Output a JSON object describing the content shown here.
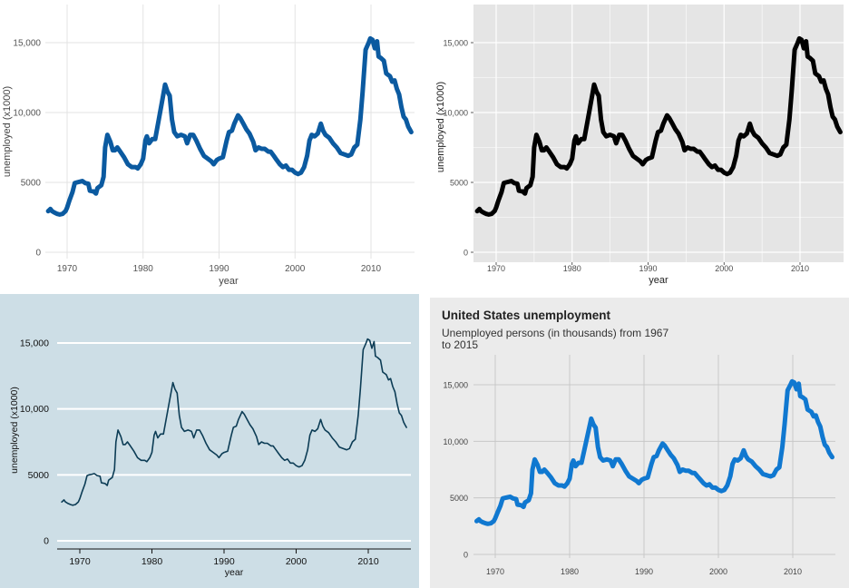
{
  "chart_data": [
    {
      "type": "line",
      "theme": "minimal",
      "xlabel": "year",
      "ylabel": "unemployed (x1000)",
      "xlim": [
        1967.5,
        2015.3
      ],
      "ylim": [
        0,
        15400
      ],
      "xticks": [
        1970,
        1980,
        1990,
        2000,
        2010
      ],
      "xticklabels": [
        "1970",
        "1980",
        "1990",
        "2000",
        "2010"
      ],
      "yticks": [
        0,
        5000,
        10000,
        15000
      ],
      "yticklabels": [
        "0",
        "5000",
        "10,000",
        "15,000"
      ],
      "grid": true,
      "line_color": "#0b5aa0",
      "background": "#ffffff",
      "x": [
        1967.5,
        1967.8,
        1968.0,
        1968.3,
        1968.7,
        1969.0,
        1969.4,
        1969.8,
        1970.0,
        1970.3,
        1970.7,
        1971.0,
        1971.3,
        1971.7,
        1972.0,
        1972.4,
        1972.8,
        1973.0,
        1973.5,
        1973.8,
        1974.0,
        1974.5,
        1974.8,
        1975.0,
        1975.3,
        1975.7,
        1976.0,
        1976.3,
        1976.6,
        1977.0,
        1977.5,
        1978.0,
        1978.5,
        1979.0,
        1979.3,
        1979.7,
        1980.0,
        1980.3,
        1980.5,
        1980.8,
        1981.2,
        1981.6,
        1982.0,
        1982.5,
        1982.9,
        1983.2,
        1983.5,
        1983.8,
        1984.1,
        1984.5,
        1985.0,
        1985.5,
        1985.8,
        1986.2,
        1986.6,
        1987.0,
        1987.5,
        1988.0,
        1988.5,
        1989.0,
        1989.3,
        1989.7,
        1990.0,
        1990.5,
        1991.0,
        1991.3,
        1991.7,
        1992.0,
        1992.5,
        1992.8,
        1993.2,
        1993.6,
        1994.0,
        1994.5,
        1994.8,
        1995.2,
        1995.6,
        1996.0,
        1996.5,
        1996.8,
        1997.2,
        1997.6,
        1998.0,
        1998.4,
        1998.8,
        1999.2,
        1999.6,
        2000.0,
        2000.4,
        2000.8,
        2001.2,
        2001.6,
        2001.9,
        2002.2,
        2002.6,
        2003.0,
        2003.4,
        2003.7,
        2004.0,
        2004.5,
        2005.0,
        2005.5,
        2006.0,
        2006.5,
        2007.0,
        2007.4,
        2007.8,
        2008.2,
        2008.6,
        2008.9,
        2009.3,
        2009.7,
        2009.9,
        2010.2,
        2010.5,
        2010.8,
        2011.0,
        2011.3,
        2011.7,
        2012.0,
        2012.5,
        2012.8,
        2013.1,
        2013.4,
        2013.7,
        2014.0,
        2014.3,
        2014.6,
        2014.9,
        2015.1,
        2015.3
      ],
      "y": [
        2944,
        3100,
        2950,
        2850,
        2750,
        2700,
        2750,
        2950,
        3200,
        3700,
        4300,
        4950,
        5000,
        5050,
        5100,
        4950,
        4900,
        4400,
        4350,
        4200,
        4600,
        4800,
        5400,
        7500,
        8400,
        7900,
        7300,
        7300,
        7500,
        7200,
        6800,
        6300,
        6100,
        6100,
        6000,
        6300,
        6700,
        8000,
        8300,
        7800,
        8100,
        8100,
        9300,
        10800,
        12000,
        11500,
        11200,
        9500,
        8600,
        8300,
        8400,
        8300,
        7800,
        8400,
        8400,
        8000,
        7400,
        6900,
        6700,
        6500,
        6300,
        6600,
        6700,
        6800,
        8000,
        8600,
        8700,
        9200,
        9800,
        9600,
        9200,
        8800,
        8500,
        7900,
        7300,
        7500,
        7400,
        7400,
        7200,
        7200,
        6900,
        6600,
        6300,
        6100,
        6200,
        5900,
        5900,
        5700,
        5600,
        5700,
        6100,
        6900,
        8000,
        8400,
        8300,
        8500,
        9200,
        8700,
        8400,
        8200,
        7800,
        7500,
        7100,
        7000,
        6900,
        7000,
        7500,
        7700,
        9500,
        11500,
        14500,
        15000,
        15300,
        15200,
        14600,
        15100,
        14000,
        13900,
        13700,
        12800,
        12600,
        12200,
        12300,
        11700,
        11300,
        10400,
        9700,
        9500,
        9000,
        8800,
        8600
      ]
    },
    {
      "type": "line",
      "theme": "gray",
      "xlabel": "year",
      "ylabel": "unemployed (x1000)",
      "xlim": [
        1967.5,
        2015.3
      ],
      "ylim": [
        0,
        15400
      ],
      "xticks": [
        1970,
        1980,
        1990,
        2000,
        2010
      ],
      "xticklabels": [
        "1970",
        "1980",
        "1990",
        "2000",
        "2010"
      ],
      "yticks": [
        0,
        5000,
        10000,
        15000
      ],
      "yticklabels": [
        "0",
        "5000",
        "10,000",
        "15,000"
      ],
      "grid": true,
      "line_color": "#000000",
      "background": "#e5e5e5",
      "x": [
        1967.5,
        1967.8,
        1968.0,
        1968.3,
        1968.7,
        1969.0,
        1969.4,
        1969.8,
        1970.0,
        1970.3,
        1970.7,
        1971.0,
        1971.3,
        1971.7,
        1972.0,
        1972.4,
        1972.8,
        1973.0,
        1973.5,
        1973.8,
        1974.0,
        1974.5,
        1974.8,
        1975.0,
        1975.3,
        1975.7,
        1976.0,
        1976.3,
        1976.6,
        1977.0,
        1977.5,
        1978.0,
        1978.5,
        1979.0,
        1979.3,
        1979.7,
        1980.0,
        1980.3,
        1980.5,
        1980.8,
        1981.2,
        1981.6,
        1982.0,
        1982.5,
        1982.9,
        1983.2,
        1983.5,
        1983.8,
        1984.1,
        1984.5,
        1985.0,
        1985.5,
        1985.8,
        1986.2,
        1986.6,
        1987.0,
        1987.5,
        1988.0,
        1988.5,
        1989.0,
        1989.3,
        1989.7,
        1990.0,
        1990.5,
        1991.0,
        1991.3,
        1991.7,
        1992.0,
        1992.5,
        1992.8,
        1993.2,
        1993.6,
        1994.0,
        1994.5,
        1994.8,
        1995.2,
        1995.6,
        1996.0,
        1996.5,
        1996.8,
        1997.2,
        1997.6,
        1998.0,
        1998.4,
        1998.8,
        1999.2,
        1999.6,
        2000.0,
        2000.4,
        2000.8,
        2001.2,
        2001.6,
        2001.9,
        2002.2,
        2002.6,
        2003.0,
        2003.4,
        2003.7,
        2004.0,
        2004.5,
        2005.0,
        2005.5,
        2006.0,
        2006.5,
        2007.0,
        2007.4,
        2007.8,
        2008.2,
        2008.6,
        2008.9,
        2009.3,
        2009.7,
        2009.9,
        2010.2,
        2010.5,
        2010.8,
        2011.0,
        2011.3,
        2011.7,
        2012.0,
        2012.5,
        2012.8,
        2013.1,
        2013.4,
        2013.7,
        2014.0,
        2014.3,
        2014.6,
        2014.9,
        2015.1,
        2015.3
      ],
      "y": [
        2944,
        3100,
        2950,
        2850,
        2750,
        2700,
        2750,
        2950,
        3200,
        3700,
        4300,
        4950,
        5000,
        5050,
        5100,
        4950,
        4900,
        4400,
        4350,
        4200,
        4600,
        4800,
        5400,
        7500,
        8400,
        7900,
        7300,
        7300,
        7500,
        7200,
        6800,
        6300,
        6100,
        6100,
        6000,
        6300,
        6700,
        8000,
        8300,
        7800,
        8100,
        8100,
        9300,
        10800,
        12000,
        11500,
        11200,
        9500,
        8600,
        8300,
        8400,
        8300,
        7800,
        8400,
        8400,
        8000,
        7400,
        6900,
        6700,
        6500,
        6300,
        6600,
        6700,
        6800,
        8000,
        8600,
        8700,
        9200,
        9800,
        9600,
        9200,
        8800,
        8500,
        7900,
        7300,
        7500,
        7400,
        7400,
        7200,
        7200,
        6900,
        6600,
        6300,
        6100,
        6200,
        5900,
        5900,
        5700,
        5600,
        5700,
        6100,
        6900,
        8000,
        8400,
        8300,
        8500,
        9200,
        8700,
        8400,
        8200,
        7800,
        7500,
        7100,
        7000,
        6900,
        7000,
        7500,
        7700,
        9500,
        11500,
        14500,
        15000,
        15300,
        15200,
        14600,
        15100,
        14000,
        13900,
        13700,
        12800,
        12600,
        12200,
        12300,
        11700,
        11300,
        10400,
        9700,
        9500,
        9000,
        8800,
        8600
      ]
    },
    {
      "type": "line",
      "theme": "economist",
      "xlabel": "year",
      "ylabel": "unemployed (x1000)",
      "xlim": [
        1967.5,
        2015.3
      ],
      "ylim": [
        0,
        15400
      ],
      "xticks": [
        1970,
        1980,
        1990,
        2000,
        2010
      ],
      "xticklabels": [
        "1970",
        "1980",
        "1990",
        "2000",
        "2010"
      ],
      "yticks": [
        0,
        5000,
        10000,
        15000
      ],
      "yticklabels": [
        "0",
        "5000",
        "10,000",
        "15,000"
      ],
      "grid": true,
      "line_color": "#0c3c55",
      "background": "#cddee6",
      "x": [
        1967.5,
        1967.8,
        1968.0,
        1968.3,
        1968.7,
        1969.0,
        1969.4,
        1969.8,
        1970.0,
        1970.3,
        1970.7,
        1971.0,
        1971.3,
        1971.7,
        1972.0,
        1972.4,
        1972.8,
        1973.0,
        1973.5,
        1973.8,
        1974.0,
        1974.5,
        1974.8,
        1975.0,
        1975.3,
        1975.7,
        1976.0,
        1976.3,
        1976.6,
        1977.0,
        1977.5,
        1978.0,
        1978.5,
        1979.0,
        1979.3,
        1979.7,
        1980.0,
        1980.3,
        1980.5,
        1980.8,
        1981.2,
        1981.6,
        1982.0,
        1982.5,
        1982.9,
        1983.2,
        1983.5,
        1983.8,
        1984.1,
        1984.5,
        1985.0,
        1985.5,
        1985.8,
        1986.2,
        1986.6,
        1987.0,
        1987.5,
        1988.0,
        1988.5,
        1989.0,
        1989.3,
        1989.7,
        1990.0,
        1990.5,
        1991.0,
        1991.3,
        1991.7,
        1992.0,
        1992.5,
        1992.8,
        1993.2,
        1993.6,
        1994.0,
        1994.5,
        1994.8,
        1995.2,
        1995.6,
        1996.0,
        1996.5,
        1996.8,
        1997.2,
        1997.6,
        1998.0,
        1998.4,
        1998.8,
        1999.2,
        1999.6,
        2000.0,
        2000.4,
        2000.8,
        2001.2,
        2001.6,
        2001.9,
        2002.2,
        2002.6,
        2003.0,
        2003.4,
        2003.7,
        2004.0,
        2004.5,
        2005.0,
        2005.5,
        2006.0,
        2006.5,
        2007.0,
        2007.4,
        2007.8,
        2008.2,
        2008.6,
        2008.9,
        2009.3,
        2009.7,
        2009.9,
        2010.2,
        2010.5,
        2010.8,
        2011.0,
        2011.3,
        2011.7,
        2012.0,
        2012.5,
        2012.8,
        2013.1,
        2013.4,
        2013.7,
        2014.0,
        2014.3,
        2014.6,
        2014.9,
        2015.1,
        2015.3
      ],
      "y": [
        2944,
        3100,
        2950,
        2850,
        2750,
        2700,
        2750,
        2950,
        3200,
        3700,
        4300,
        4950,
        5000,
        5050,
        5100,
        4950,
        4900,
        4400,
        4350,
        4200,
        4600,
        4800,
        5400,
        7500,
        8400,
        7900,
        7300,
        7300,
        7500,
        7200,
        6800,
        6300,
        6100,
        6100,
        6000,
        6300,
        6700,
        8000,
        8300,
        7800,
        8100,
        8100,
        9300,
        10800,
        12000,
        11500,
        11200,
        9500,
        8600,
        8300,
        8400,
        8300,
        7800,
        8400,
        8400,
        8000,
        7400,
        6900,
        6700,
        6500,
        6300,
        6600,
        6700,
        6800,
        8000,
        8600,
        8700,
        9200,
        9800,
        9600,
        9200,
        8800,
        8500,
        7900,
        7300,
        7500,
        7400,
        7400,
        7200,
        7200,
        6900,
        6600,
        6300,
        6100,
        6200,
        5900,
        5900,
        5700,
        5600,
        5700,
        6100,
        6900,
        8000,
        8400,
        8300,
        8500,
        9200,
        8700,
        8400,
        8200,
        7800,
        7500,
        7100,
        7000,
        6900,
        7000,
        7500,
        7700,
        9500,
        11500,
        14500,
        15000,
        15300,
        15200,
        14600,
        15100,
        14000,
        13900,
        13700,
        12800,
        12600,
        12200,
        12300,
        11700,
        11300,
        10400,
        9700,
        9500,
        9000,
        8800,
        8600
      ]
    },
    {
      "type": "line",
      "theme": "titled",
      "title": "United States unemployment",
      "subtitle_lines": [
        "Unemployed persons (in thousands) from 1967",
        "to 2015"
      ],
      "xlim": [
        1967.5,
        2015.3
      ],
      "ylim": [
        0,
        15400
      ],
      "xticks": [
        1970,
        1980,
        1990,
        2000,
        2010
      ],
      "xticklabels": [
        "1970",
        "1980",
        "1990",
        "2000",
        "2010"
      ],
      "yticks": [
        0,
        5000,
        10000,
        15000
      ],
      "yticklabels": [
        "0",
        "5000",
        "10,000",
        "15,000"
      ],
      "grid": true,
      "line_color": "#1078d0",
      "background": "#ebebeb",
      "x": [
        1967.5,
        1967.8,
        1968.0,
        1968.3,
        1968.7,
        1969.0,
        1969.4,
        1969.8,
        1970.0,
        1970.3,
        1970.7,
        1971.0,
        1971.3,
        1971.7,
        1972.0,
        1972.4,
        1972.8,
        1973.0,
        1973.5,
        1973.8,
        1974.0,
        1974.5,
        1974.8,
        1975.0,
        1975.3,
        1975.7,
        1976.0,
        1976.3,
        1976.6,
        1977.0,
        1977.5,
        1978.0,
        1978.5,
        1979.0,
        1979.3,
        1979.7,
        1980.0,
        1980.3,
        1980.5,
        1980.8,
        1981.2,
        1981.6,
        1982.0,
        1982.5,
        1982.9,
        1983.2,
        1983.5,
        1983.8,
        1984.1,
        1984.5,
        1985.0,
        1985.5,
        1985.8,
        1986.2,
        1986.6,
        1987.0,
        1987.5,
        1988.0,
        1988.5,
        1989.0,
        1989.3,
        1989.7,
        1990.0,
        1990.5,
        1991.0,
        1991.3,
        1991.7,
        1992.0,
        1992.5,
        1992.8,
        1993.2,
        1993.6,
        1994.0,
        1994.5,
        1994.8,
        1995.2,
        1995.6,
        1996.0,
        1996.5,
        1996.8,
        1997.2,
        1997.6,
        1998.0,
        1998.4,
        1998.8,
        1999.2,
        1999.6,
        2000.0,
        2000.4,
        2000.8,
        2001.2,
        2001.6,
        2001.9,
        2002.2,
        2002.6,
        2003.0,
        2003.4,
        2003.7,
        2004.0,
        2004.5,
        2005.0,
        2005.5,
        2006.0,
        2006.5,
        2007.0,
        2007.4,
        2007.8,
        2008.2,
        2008.6,
        2008.9,
        2009.3,
        2009.7,
        2009.9,
        2010.2,
        2010.5,
        2010.8,
        2011.0,
        2011.3,
        2011.7,
        2012.0,
        2012.5,
        2012.8,
        2013.1,
        2013.4,
        2013.7,
        2014.0,
        2014.3,
        2014.6,
        2014.9,
        2015.1,
        2015.3
      ],
      "y": [
        2944,
        3100,
        2950,
        2850,
        2750,
        2700,
        2750,
        2950,
        3200,
        3700,
        4300,
        4950,
        5000,
        5050,
        5100,
        4950,
        4900,
        4400,
        4350,
        4200,
        4600,
        4800,
        5400,
        7500,
        8400,
        7900,
        7300,
        7300,
        7500,
        7200,
        6800,
        6300,
        6100,
        6100,
        6000,
        6300,
        6700,
        8000,
        8300,
        7800,
        8100,
        8100,
        9300,
        10800,
        12000,
        11500,
        11200,
        9500,
        8600,
        8300,
        8400,
        8300,
        7800,
        8400,
        8400,
        8000,
        7400,
        6900,
        6700,
        6500,
        6300,
        6600,
        6700,
        6800,
        8000,
        8600,
        8700,
        9200,
        9800,
        9600,
        9200,
        8800,
        8500,
        7900,
        7300,
        7500,
        7400,
        7400,
        7200,
        7200,
        6900,
        6600,
        6300,
        6100,
        6200,
        5900,
        5900,
        5700,
        5600,
        5700,
        6100,
        6900,
        8000,
        8400,
        8300,
        8500,
        9200,
        8700,
        8400,
        8200,
        7800,
        7500,
        7100,
        7000,
        6900,
        7000,
        7500,
        7700,
        9500,
        11500,
        14500,
        15000,
        15300,
        15200,
        14600,
        15100,
        14000,
        13900,
        13700,
        12800,
        12600,
        12200,
        12300,
        11700,
        11300,
        10400,
        9700,
        9500,
        9000,
        8800,
        8600
      ]
    }
  ]
}
